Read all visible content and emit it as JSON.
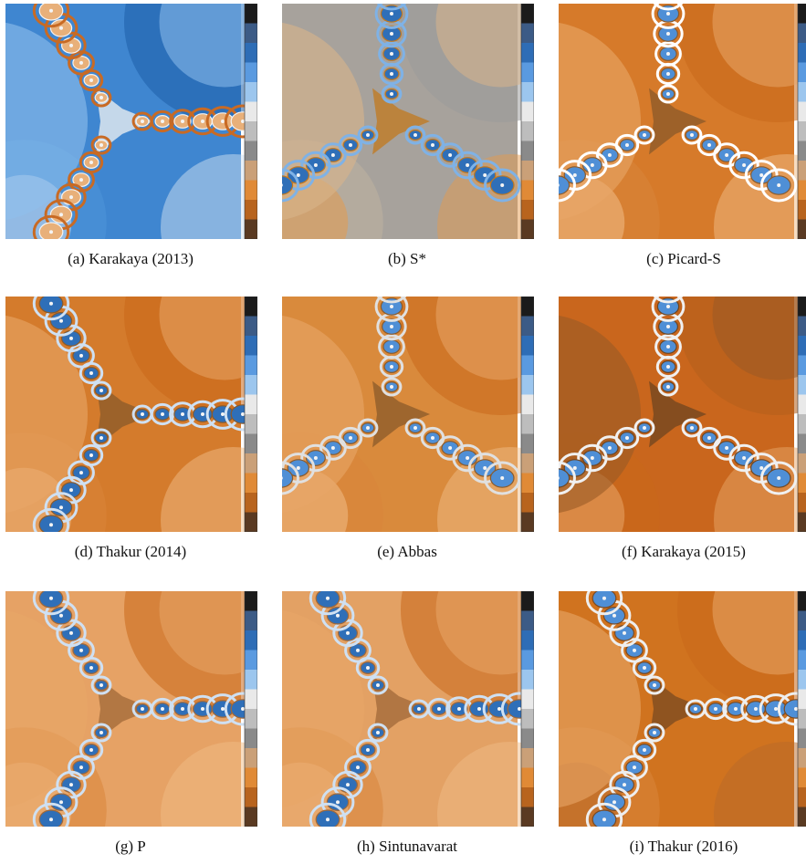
{
  "figure": {
    "panels": [
      {
        "caption": "(a) Karakaya (2013)",
        "palette": [
          "#1e5fa8",
          "#4f95d9",
          "#8fc0ec",
          "#cfdff0",
          "#f3f3f3",
          "#e8b07a",
          "#c86a24"
        ],
        "background": "#3f86d0"
      },
      {
        "caption": "(b) S*",
        "palette": [
          "#9a9a9a",
          "#bfb2a0",
          "#d9b48a",
          "#e39a4e",
          "#c2781e",
          "#2f6fb8",
          "#7fb2e6"
        ],
        "background": "#a7a29c"
      },
      {
        "caption": "(c) Picard-S",
        "palette": [
          "#c9671a",
          "#d8853a",
          "#e8a668",
          "#f0bc86",
          "#8a5a2a",
          "#4f8fd6",
          "#ffffff"
        ],
        "background": "#d67a2a"
      },
      {
        "caption": "(d) Thakur (2014)",
        "palette": [
          "#c9671a",
          "#d8853a",
          "#e8a668",
          "#f0bc86",
          "#8a5a2a",
          "#2f6fb8",
          "#cfe0f2"
        ],
        "background": "#d47b2c"
      },
      {
        "caption": "(e) Abbas",
        "palette": [
          "#c9671a",
          "#d8853a",
          "#e8a668",
          "#f0bc86",
          "#8a5a2a",
          "#4f8fd6",
          "#e0e0e0"
        ],
        "background": "#d98a3c"
      },
      {
        "caption": "(f) Karakaya (2015)",
        "palette": [
          "#b25e1c",
          "#c9671a",
          "#9a5a26",
          "#e8a668",
          "#6e4520",
          "#4f8fd6",
          "#f0f0f0"
        ],
        "background": "#c9661d"
      },
      {
        "caption": "(g) P",
        "palette": [
          "#c9671a",
          "#d8853a",
          "#e8a668",
          "#f0bc86",
          "#a06838",
          "#2f6fb8",
          "#cfe0f2"
        ],
        "background": "#e6a265"
      },
      {
        "caption": "(h) Sintunavarat",
        "palette": [
          "#c9671a",
          "#d8853a",
          "#e8a668",
          "#f0bc86",
          "#a06838",
          "#2f6fb8",
          "#cfe0f2"
        ],
        "background": "#e3a164"
      },
      {
        "caption": "(i) Thakur (2016)",
        "palette": [
          "#c9671a",
          "#d8853a",
          "#e8a668",
          "#b86a2a",
          "#7a4a22",
          "#4f8fd6",
          "#eeeeee"
        ],
        "background": "#d0731f"
      }
    ],
    "colorbar_colors": [
      "#1b1b1b",
      "#3c5b86",
      "#2e6db6",
      "#5a9ae0",
      "#9cc6ee",
      "#e9e9e9",
      "#bdbdbd",
      "#8a8a8a",
      "#caa078",
      "#e08a36",
      "#b8641e",
      "#5a3a22"
    ]
  }
}
